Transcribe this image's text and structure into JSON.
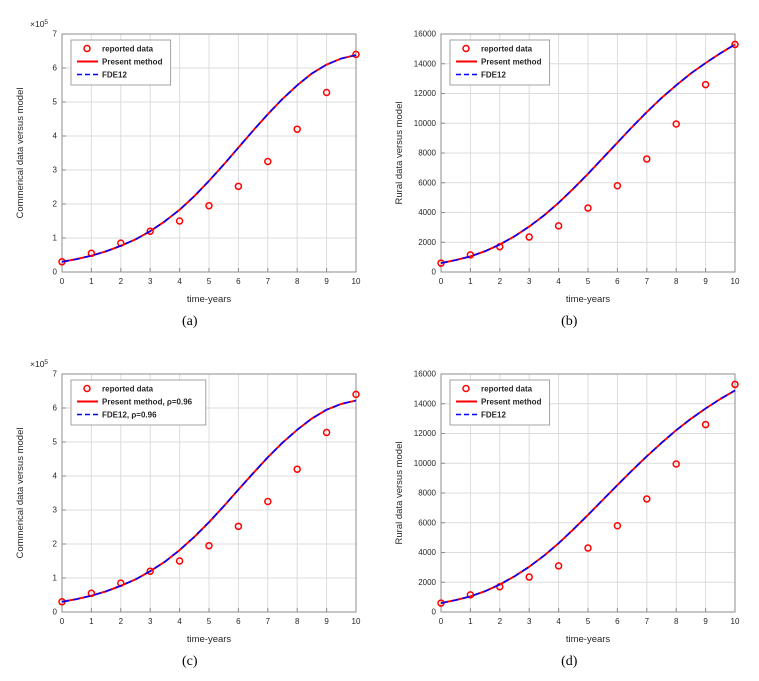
{
  "page": {
    "background": "#ffffff"
  },
  "palette": {
    "grid": "#dcdcdc",
    "axis_box": "#8c8c8c",
    "tick_text": "#262626",
    "label_text": "#262626",
    "legend_border": "#999999",
    "reported_color": "#ff0000",
    "present_color": "#ff0000",
    "fde12_color": "#0000ff"
  },
  "chart_data": [
    {
      "id": "a",
      "caption": "(a)",
      "type": "line",
      "xlabel": "time-years",
      "ylabel": "Commerical data versus model",
      "y_scale_base": "×10",
      "y_scale_exp": "5",
      "xlim": [
        0,
        10
      ],
      "ylim": [
        0,
        7
      ],
      "xticks": [
        0,
        1,
        2,
        3,
        4,
        5,
        6,
        7,
        8,
        9,
        10
      ],
      "yticks": [
        0,
        1,
        2,
        3,
        4,
        5,
        6,
        7
      ],
      "grid": true,
      "legend_position": "top-left",
      "series": [
        {
          "name": "reported data",
          "kind": "scatter",
          "marker": "o",
          "color": "#ff0000",
          "x": [
            0,
            1,
            2,
            3,
            4,
            5,
            6,
            7,
            8,
            9,
            10
          ],
          "y": [
            0.3,
            0.55,
            0.85,
            1.2,
            1.5,
            1.95,
            2.52,
            3.25,
            4.2,
            5.28,
            6.4
          ]
        },
        {
          "name": "Present method",
          "kind": "line",
          "style": "solid",
          "color": "#ff0000",
          "x": [
            0,
            0.5,
            1,
            1.5,
            2,
            2.5,
            3,
            3.5,
            4,
            4.5,
            5,
            5.5,
            6,
            6.5,
            7,
            7.5,
            8,
            8.5,
            9,
            9.5,
            10
          ],
          "y": [
            0.3,
            0.38,
            0.48,
            0.61,
            0.77,
            0.96,
            1.2,
            1.49,
            1.83,
            2.23,
            2.68,
            3.16,
            3.66,
            4.16,
            4.64,
            5.09,
            5.49,
            5.84,
            6.1,
            6.28,
            6.38
          ]
        },
        {
          "name": "FDE12",
          "kind": "line",
          "style": "dashed",
          "color": "#0000ff",
          "x": [
            0,
            0.5,
            1,
            1.5,
            2,
            2.5,
            3,
            3.5,
            4,
            4.5,
            5,
            5.5,
            6,
            6.5,
            7,
            7.5,
            8,
            8.5,
            9,
            9.5,
            10
          ],
          "y": [
            0.3,
            0.38,
            0.48,
            0.61,
            0.77,
            0.96,
            1.2,
            1.49,
            1.83,
            2.23,
            2.68,
            3.16,
            3.66,
            4.16,
            4.64,
            5.09,
            5.49,
            5.84,
            6.1,
            6.28,
            6.38
          ]
        }
      ]
    },
    {
      "id": "b",
      "caption": "(b)",
      "type": "line",
      "xlabel": "time-years",
      "ylabel": "Rural data versus model",
      "xlim": [
        0,
        10
      ],
      "ylim": [
        0,
        16000
      ],
      "xticks": [
        0,
        1,
        2,
        3,
        4,
        5,
        6,
        7,
        8,
        9,
        10
      ],
      "yticks": [
        0,
        2000,
        4000,
        6000,
        8000,
        10000,
        12000,
        14000,
        16000
      ],
      "grid": true,
      "legend_position": "top-left",
      "series": [
        {
          "name": "reported data",
          "kind": "scatter",
          "marker": "o",
          "color": "#ff0000",
          "x": [
            0,
            1,
            2,
            3,
            4,
            5,
            6,
            7,
            8,
            9,
            10
          ],
          "y": [
            600,
            1150,
            1700,
            2350,
            3100,
            4300,
            5800,
            7600,
            9950,
            12600,
            15300
          ]
        },
        {
          "name": "Present method",
          "kind": "line",
          "style": "solid",
          "color": "#ff0000",
          "x": [
            0,
            0.5,
            1,
            1.5,
            2,
            2.5,
            3,
            3.5,
            4,
            4.5,
            5,
            5.5,
            6,
            6.5,
            7,
            7.5,
            8,
            8.5,
            9,
            9.5,
            10
          ],
          "y": [
            600,
            800,
            1050,
            1400,
            1850,
            2400,
            3050,
            3800,
            4650,
            5600,
            6600,
            7650,
            8700,
            9750,
            10750,
            11700,
            12550,
            13350,
            14050,
            14700,
            15300
          ]
        },
        {
          "name": "FDE12",
          "kind": "line",
          "style": "dashed",
          "color": "#0000ff",
          "x": [
            0,
            0.5,
            1,
            1.5,
            2,
            2.5,
            3,
            3.5,
            4,
            4.5,
            5,
            5.5,
            6,
            6.5,
            7,
            7.5,
            8,
            8.5,
            9,
            9.5,
            10
          ],
          "y": [
            600,
            800,
            1050,
            1400,
            1850,
            2400,
            3050,
            3800,
            4650,
            5600,
            6600,
            7650,
            8700,
            9750,
            10750,
            11700,
            12550,
            13350,
            14050,
            14700,
            15300
          ]
        }
      ]
    },
    {
      "id": "c",
      "caption": "(c)",
      "type": "line",
      "xlabel": "time-years",
      "ylabel": "Commerical data versus model",
      "y_scale_base": "×10",
      "y_scale_exp": "5",
      "xlim": [
        0,
        10
      ],
      "ylim": [
        0,
        7
      ],
      "xticks": [
        0,
        1,
        2,
        3,
        4,
        5,
        6,
        7,
        8,
        9,
        10
      ],
      "yticks": [
        0,
        1,
        2,
        3,
        4,
        5,
        6,
        7
      ],
      "grid": true,
      "legend_position": "top-left",
      "series": [
        {
          "name": "reported data",
          "kind": "scatter",
          "marker": "o",
          "color": "#ff0000",
          "x": [
            0,
            1,
            2,
            3,
            4,
            5,
            6,
            7,
            8,
            9,
            10
          ],
          "y": [
            0.3,
            0.55,
            0.85,
            1.2,
            1.5,
            1.95,
            2.52,
            3.25,
            4.2,
            5.28,
            6.4
          ]
        },
        {
          "name": "Present method, ρ=0.96",
          "kind": "line",
          "style": "solid",
          "color": "#ff0000",
          "x": [
            0,
            0.5,
            1,
            1.5,
            2,
            2.5,
            3,
            3.5,
            4,
            4.5,
            5,
            5.5,
            6,
            6.5,
            7,
            7.5,
            8,
            8.5,
            9,
            9.5,
            10
          ],
          "y": [
            0.3,
            0.38,
            0.48,
            0.61,
            0.77,
            0.96,
            1.2,
            1.48,
            1.82,
            2.21,
            2.64,
            3.11,
            3.6,
            4.08,
            4.55,
            4.98,
            5.36,
            5.69,
            5.95,
            6.12,
            6.22
          ]
        },
        {
          "name": "FDE12, ρ=0.96",
          "kind": "line",
          "style": "dashed",
          "color": "#0000ff",
          "x": [
            0,
            0.5,
            1,
            1.5,
            2,
            2.5,
            3,
            3.5,
            4,
            4.5,
            5,
            5.5,
            6,
            6.5,
            7,
            7.5,
            8,
            8.5,
            9,
            9.5,
            10
          ],
          "y": [
            0.3,
            0.38,
            0.48,
            0.61,
            0.77,
            0.96,
            1.2,
            1.48,
            1.82,
            2.21,
            2.64,
            3.11,
            3.6,
            4.08,
            4.55,
            4.98,
            5.36,
            5.69,
            5.95,
            6.12,
            6.22
          ]
        }
      ]
    },
    {
      "id": "d",
      "caption": "(d)",
      "type": "line",
      "xlabel": "time-years",
      "ylabel": "Rural data versus model",
      "xlim": [
        0,
        10
      ],
      "ylim": [
        0,
        16000
      ],
      "xticks": [
        0,
        1,
        2,
        3,
        4,
        5,
        6,
        7,
        8,
        9,
        10
      ],
      "yticks": [
        0,
        2000,
        4000,
        6000,
        8000,
        10000,
        12000,
        14000,
        16000
      ],
      "grid": true,
      "legend_position": "top-left",
      "series": [
        {
          "name": "reported data",
          "kind": "scatter",
          "marker": "o",
          "color": "#ff0000",
          "x": [
            0,
            1,
            2,
            3,
            4,
            5,
            6,
            7,
            8,
            9,
            10
          ],
          "y": [
            600,
            1150,
            1700,
            2350,
            3100,
            4300,
            5800,
            7600,
            9950,
            12600,
            15300
          ]
        },
        {
          "name": "Present method",
          "kind": "line",
          "style": "solid",
          "color": "#ff0000",
          "x": [
            0,
            0.5,
            1,
            1.5,
            2,
            2.5,
            3,
            3.5,
            4,
            4.5,
            5,
            5.5,
            6,
            6.5,
            7,
            7.5,
            8,
            8.5,
            9,
            9.5,
            10
          ],
          "y": [
            600,
            800,
            1050,
            1400,
            1850,
            2400,
            3040,
            3780,
            4620,
            5550,
            6530,
            7530,
            8530,
            9520,
            10470,
            11370,
            12220,
            12990,
            13680,
            14320,
            14900
          ]
        },
        {
          "name": "FDE12",
          "kind": "line",
          "style": "dashed",
          "color": "#0000ff",
          "x": [
            0,
            0.5,
            1,
            1.5,
            2,
            2.5,
            3,
            3.5,
            4,
            4.5,
            5,
            5.5,
            6,
            6.5,
            7,
            7.5,
            8,
            8.5,
            9,
            9.5,
            10
          ],
          "y": [
            600,
            800,
            1050,
            1400,
            1850,
            2400,
            3040,
            3780,
            4620,
            5550,
            6530,
            7530,
            8530,
            9520,
            10470,
            11370,
            12220,
            12990,
            13680,
            14320,
            14900
          ]
        }
      ]
    }
  ]
}
